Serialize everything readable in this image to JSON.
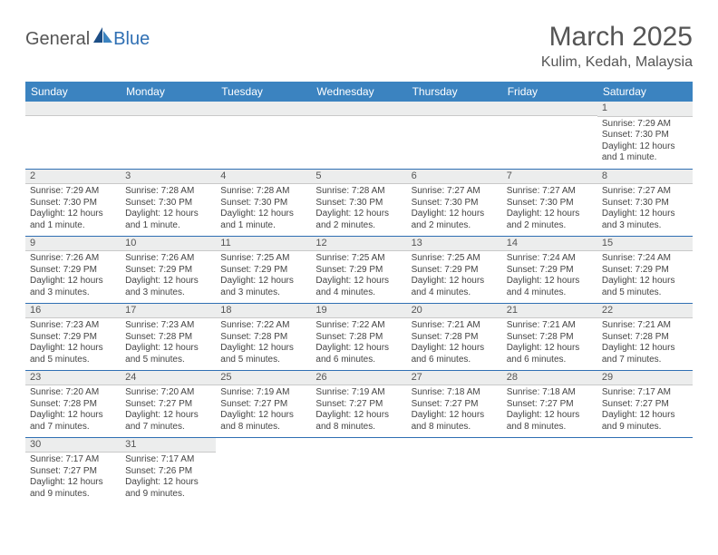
{
  "brand": {
    "text1": "General",
    "text2": "Blue"
  },
  "title": "March 2025",
  "location": "Kulim, Kedah, Malaysia",
  "colors": {
    "header_bg": "#3b83c0",
    "header_text": "#ffffff",
    "daynum_bg": "#eceded",
    "border": "#2f6fb3",
    "body_text": "#444"
  },
  "weekdays": [
    "Sunday",
    "Monday",
    "Tuesday",
    "Wednesday",
    "Thursday",
    "Friday",
    "Saturday"
  ],
  "weeks": [
    [
      null,
      null,
      null,
      null,
      null,
      null,
      {
        "n": "1",
        "sr": "Sunrise: 7:29 AM",
        "ss": "Sunset: 7:30 PM",
        "dl": "Daylight: 12 hours and 1 minute."
      }
    ],
    [
      {
        "n": "2",
        "sr": "Sunrise: 7:29 AM",
        "ss": "Sunset: 7:30 PM",
        "dl": "Daylight: 12 hours and 1 minute."
      },
      {
        "n": "3",
        "sr": "Sunrise: 7:28 AM",
        "ss": "Sunset: 7:30 PM",
        "dl": "Daylight: 12 hours and 1 minute."
      },
      {
        "n": "4",
        "sr": "Sunrise: 7:28 AM",
        "ss": "Sunset: 7:30 PM",
        "dl": "Daylight: 12 hours and 1 minute."
      },
      {
        "n": "5",
        "sr": "Sunrise: 7:28 AM",
        "ss": "Sunset: 7:30 PM",
        "dl": "Daylight: 12 hours and 2 minutes."
      },
      {
        "n": "6",
        "sr": "Sunrise: 7:27 AM",
        "ss": "Sunset: 7:30 PM",
        "dl": "Daylight: 12 hours and 2 minutes."
      },
      {
        "n": "7",
        "sr": "Sunrise: 7:27 AM",
        "ss": "Sunset: 7:30 PM",
        "dl": "Daylight: 12 hours and 2 minutes."
      },
      {
        "n": "8",
        "sr": "Sunrise: 7:27 AM",
        "ss": "Sunset: 7:30 PM",
        "dl": "Daylight: 12 hours and 3 minutes."
      }
    ],
    [
      {
        "n": "9",
        "sr": "Sunrise: 7:26 AM",
        "ss": "Sunset: 7:29 PM",
        "dl": "Daylight: 12 hours and 3 minutes."
      },
      {
        "n": "10",
        "sr": "Sunrise: 7:26 AM",
        "ss": "Sunset: 7:29 PM",
        "dl": "Daylight: 12 hours and 3 minutes."
      },
      {
        "n": "11",
        "sr": "Sunrise: 7:25 AM",
        "ss": "Sunset: 7:29 PM",
        "dl": "Daylight: 12 hours and 3 minutes."
      },
      {
        "n": "12",
        "sr": "Sunrise: 7:25 AM",
        "ss": "Sunset: 7:29 PM",
        "dl": "Daylight: 12 hours and 4 minutes."
      },
      {
        "n": "13",
        "sr": "Sunrise: 7:25 AM",
        "ss": "Sunset: 7:29 PM",
        "dl": "Daylight: 12 hours and 4 minutes."
      },
      {
        "n": "14",
        "sr": "Sunrise: 7:24 AM",
        "ss": "Sunset: 7:29 PM",
        "dl": "Daylight: 12 hours and 4 minutes."
      },
      {
        "n": "15",
        "sr": "Sunrise: 7:24 AM",
        "ss": "Sunset: 7:29 PM",
        "dl": "Daylight: 12 hours and 5 minutes."
      }
    ],
    [
      {
        "n": "16",
        "sr": "Sunrise: 7:23 AM",
        "ss": "Sunset: 7:29 PM",
        "dl": "Daylight: 12 hours and 5 minutes."
      },
      {
        "n": "17",
        "sr": "Sunrise: 7:23 AM",
        "ss": "Sunset: 7:28 PM",
        "dl": "Daylight: 12 hours and 5 minutes."
      },
      {
        "n": "18",
        "sr": "Sunrise: 7:22 AM",
        "ss": "Sunset: 7:28 PM",
        "dl": "Daylight: 12 hours and 5 minutes."
      },
      {
        "n": "19",
        "sr": "Sunrise: 7:22 AM",
        "ss": "Sunset: 7:28 PM",
        "dl": "Daylight: 12 hours and 6 minutes."
      },
      {
        "n": "20",
        "sr": "Sunrise: 7:21 AM",
        "ss": "Sunset: 7:28 PM",
        "dl": "Daylight: 12 hours and 6 minutes."
      },
      {
        "n": "21",
        "sr": "Sunrise: 7:21 AM",
        "ss": "Sunset: 7:28 PM",
        "dl": "Daylight: 12 hours and 6 minutes."
      },
      {
        "n": "22",
        "sr": "Sunrise: 7:21 AM",
        "ss": "Sunset: 7:28 PM",
        "dl": "Daylight: 12 hours and 7 minutes."
      }
    ],
    [
      {
        "n": "23",
        "sr": "Sunrise: 7:20 AM",
        "ss": "Sunset: 7:28 PM",
        "dl": "Daylight: 12 hours and 7 minutes."
      },
      {
        "n": "24",
        "sr": "Sunrise: 7:20 AM",
        "ss": "Sunset: 7:27 PM",
        "dl": "Daylight: 12 hours and 7 minutes."
      },
      {
        "n": "25",
        "sr": "Sunrise: 7:19 AM",
        "ss": "Sunset: 7:27 PM",
        "dl": "Daylight: 12 hours and 8 minutes."
      },
      {
        "n": "26",
        "sr": "Sunrise: 7:19 AM",
        "ss": "Sunset: 7:27 PM",
        "dl": "Daylight: 12 hours and 8 minutes."
      },
      {
        "n": "27",
        "sr": "Sunrise: 7:18 AM",
        "ss": "Sunset: 7:27 PM",
        "dl": "Daylight: 12 hours and 8 minutes."
      },
      {
        "n": "28",
        "sr": "Sunrise: 7:18 AM",
        "ss": "Sunset: 7:27 PM",
        "dl": "Daylight: 12 hours and 8 minutes."
      },
      {
        "n": "29",
        "sr": "Sunrise: 7:17 AM",
        "ss": "Sunset: 7:27 PM",
        "dl": "Daylight: 12 hours and 9 minutes."
      }
    ],
    [
      {
        "n": "30",
        "sr": "Sunrise: 7:17 AM",
        "ss": "Sunset: 7:27 PM",
        "dl": "Daylight: 12 hours and 9 minutes."
      },
      {
        "n": "31",
        "sr": "Sunrise: 7:17 AM",
        "ss": "Sunset: 7:26 PM",
        "dl": "Daylight: 12 hours and 9 minutes."
      },
      null,
      null,
      null,
      null,
      null
    ]
  ]
}
